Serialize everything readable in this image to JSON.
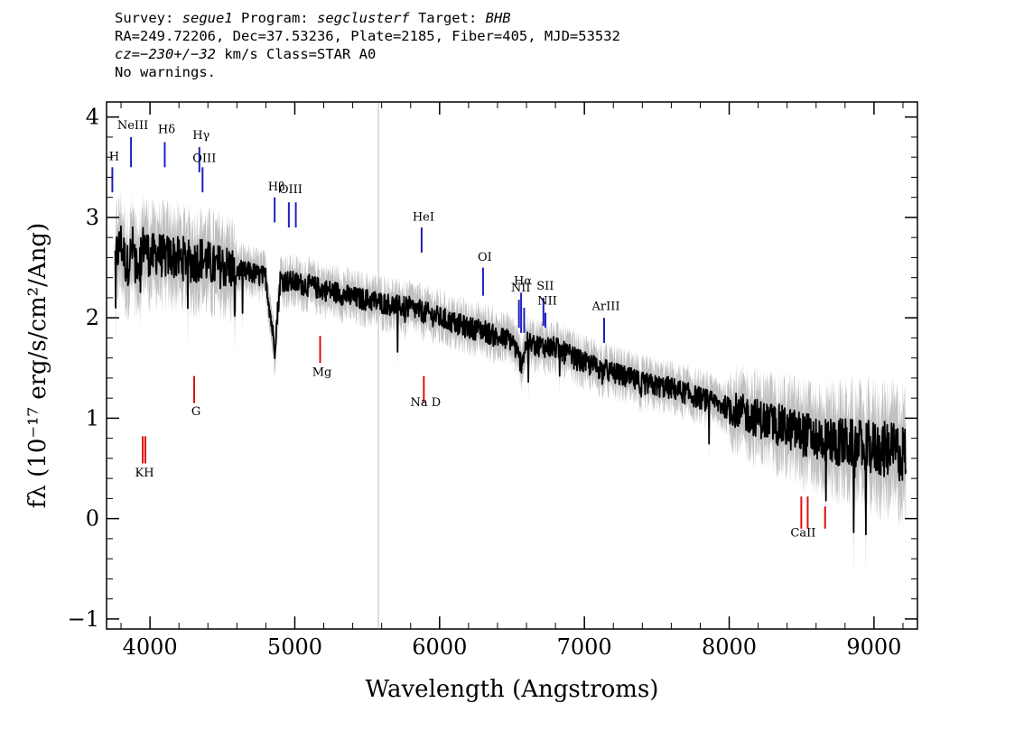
{
  "header": {
    "line1": {
      "survey_label": "Survey: ",
      "survey": "segue1",
      "program_label": " Program: ",
      "program": "segclusterf",
      "target_label": " Target: ",
      "target": "BHB"
    },
    "line2": "RA=249.72206, Dec=37.53236, Plate=2185, Fiber=405, MJD=53532",
    "line3": {
      "cz": "cz=",
      "value": "−230+/−32",
      "rest": " km/s Class=STAR A0"
    },
    "line4": "No warnings."
  },
  "chart_data": {
    "type": "line",
    "xlabel": "Wavelength (Angstroms)",
    "ylabel": "fλ (10⁻¹⁷ erg/s/cm²/Ang)",
    "xlim": [
      3700,
      9300
    ],
    "ylim": [
      -1.1,
      4.15
    ],
    "x_ticks": [
      4000,
      5000,
      6000,
      7000,
      8000,
      9000
    ],
    "y_ticks": [
      -1,
      0,
      1,
      2,
      3,
      4
    ],
    "sky_line_x": 5577,
    "colors": {
      "spectrum": "#000000",
      "error": "#c0c0c0",
      "emission": "#1f1fbf",
      "absorption": "#e01010",
      "sky": "#c8c8c8"
    },
    "series": [
      {
        "role": "spectrum",
        "points": [
          [
            3760,
            2.6
          ],
          [
            3800,
            2.75
          ],
          [
            3840,
            2.5
          ],
          [
            3880,
            2.7
          ],
          [
            3920,
            2.55
          ],
          [
            3960,
            2.75
          ],
          [
            4000,
            2.6
          ],
          [
            4050,
            2.65
          ],
          [
            4100,
            2.6
          ],
          [
            4150,
            2.62
          ],
          [
            4200,
            2.58
          ],
          [
            4250,
            2.6
          ],
          [
            4300,
            2.55
          ],
          [
            4350,
            2.6
          ],
          [
            4400,
            2.55
          ],
          [
            4450,
            2.5
          ],
          [
            4500,
            2.52
          ],
          [
            4550,
            2.5
          ],
          [
            4600,
            2.48
          ],
          [
            4650,
            2.45
          ],
          [
            4700,
            2.45
          ],
          [
            4750,
            2.42
          ],
          [
            4800,
            2.4
          ],
          [
            4861,
            1.7
          ],
          [
            4900,
            2.38
          ],
          [
            5000,
            2.35
          ],
          [
            5100,
            2.32
          ],
          [
            5200,
            2.28
          ],
          [
            5300,
            2.25
          ],
          [
            5400,
            2.2
          ],
          [
            5500,
            2.18
          ],
          [
            5600,
            2.15
          ],
          [
            5700,
            2.12
          ],
          [
            5800,
            2.1
          ],
          [
            5900,
            2.05
          ],
          [
            6000,
            2.0
          ],
          [
            6100,
            1.95
          ],
          [
            6200,
            1.9
          ],
          [
            6300,
            1.88
          ],
          [
            6400,
            1.8
          ],
          [
            6500,
            1.78
          ],
          [
            6563,
            1.55
          ],
          [
            6600,
            1.75
          ],
          [
            6700,
            1.72
          ],
          [
            6800,
            1.7
          ],
          [
            6900,
            1.62
          ],
          [
            7000,
            1.55
          ],
          [
            7100,
            1.5
          ],
          [
            7200,
            1.45
          ],
          [
            7300,
            1.4
          ],
          [
            7400,
            1.35
          ],
          [
            7500,
            1.32
          ],
          [
            7600,
            1.3
          ],
          [
            7700,
            1.25
          ],
          [
            7800,
            1.2
          ],
          [
            7900,
            1.15
          ],
          [
            8000,
            1.1
          ],
          [
            8100,
            1.05
          ],
          [
            8200,
            1.0
          ],
          [
            8300,
            0.95
          ],
          [
            8400,
            0.9
          ],
          [
            8500,
            0.85
          ],
          [
            8600,
            0.8
          ],
          [
            8700,
            0.78
          ],
          [
            8800,
            0.75
          ],
          [
            8900,
            0.72
          ],
          [
            9000,
            0.7
          ],
          [
            9100,
            0.68
          ],
          [
            9200,
            0.65
          ]
        ]
      }
    ],
    "lines": [
      {
        "label": "H",
        "x": 3740,
        "kind": "emission",
        "top": 3.5,
        "bottom": 3.25,
        "label_y": 3.57
      },
      {
        "label": "NeIII",
        "x": 3869,
        "kind": "emission",
        "top": 3.8,
        "bottom": 3.5,
        "label_y": 3.88
      },
      {
        "label": "Hδ",
        "x": 4102,
        "kind": "emission",
        "top": 3.75,
        "bottom": 3.5,
        "label_y": 3.84
      },
      {
        "label": "Hγ",
        "x": 4341,
        "kind": "emission",
        "top": 3.7,
        "bottom": 3.45,
        "label_y": 3.78
      },
      {
        "label": "OIII",
        "x": 4363,
        "kind": "emission",
        "top": 3.5,
        "bottom": 3.25,
        "label_y": 3.55
      },
      {
        "label": "Hβ",
        "x": 4861,
        "kind": "emission",
        "top": 3.2,
        "bottom": 2.95,
        "label_y": 3.27
      },
      {
        "label": "OIII",
        "x": 4959,
        "kind": "emission",
        "top": 3.15,
        "bottom": 2.9,
        "label_y": 3.24
      },
      {
        "label": "",
        "x": 5007,
        "kind": "emission",
        "top": 3.15,
        "bottom": 2.9
      },
      {
        "label": "HeI",
        "x": 5876,
        "kind": "emission",
        "top": 2.9,
        "bottom": 2.65,
        "label_y": 2.97
      },
      {
        "label": "OI",
        "x": 6300,
        "kind": "emission",
        "top": 2.5,
        "bottom": 2.22,
        "label_y": 2.57
      },
      {
        "label": "NII",
        "x": 6548,
        "kind": "emission",
        "top": 2.18,
        "bottom": 1.9,
        "label_y": 2.26
      },
      {
        "label": "Hα",
        "x": 6563,
        "kind": "emission",
        "top": 2.25,
        "bottom": 1.85,
        "label_y": 2.33
      },
      {
        "label": "",
        "x": 6584,
        "kind": "emission",
        "top": 2.1,
        "bottom": 1.85
      },
      {
        "label": "SII",
        "x": 6717,
        "kind": "emission",
        "top": 2.2,
        "bottom": 1.92,
        "label_y": 2.28
      },
      {
        "label": "NII",
        "x": 6731,
        "kind": "emission",
        "top": 2.05,
        "bottom": 1.9,
        "label_y": 2.13
      },
      {
        "label": "ArIII",
        "x": 7136,
        "kind": "emission",
        "top": 2.0,
        "bottom": 1.75,
        "label_y": 2.08
      },
      {
        "label": "Mg",
        "x": 5175,
        "kind": "absorption",
        "top": 1.82,
        "bottom": 1.55,
        "label_y": 1.42
      },
      {
        "label": "G",
        "x": 4305,
        "kind": "absorption",
        "top": 1.42,
        "bottom": 1.15,
        "label_y": 1.03
      },
      {
        "label": "Na  D",
        "x": 5891,
        "kind": "absorption",
        "top": 1.42,
        "bottom": 1.15,
        "label_y": 1.12
      },
      {
        "label": "KH",
        "x": 3950,
        "kind": "absorption",
        "top": 0.82,
        "bottom": 0.55,
        "label_y": 0.42
      },
      {
        "label": "",
        "x": 3968,
        "kind": "absorption",
        "top": 0.82,
        "bottom": 0.55
      },
      {
        "label": "CaII",
        "x": 8498,
        "kind": "absorption",
        "top": 0.22,
        "bottom": -0.1,
        "label_y": -0.18
      },
      {
        "label": "",
        "x": 8542,
        "kind": "absorption",
        "top": 0.22,
        "bottom": -0.1
      },
      {
        "label": "",
        "x": 8662,
        "kind": "absorption",
        "top": 0.12,
        "bottom": -0.1
      }
    ]
  }
}
